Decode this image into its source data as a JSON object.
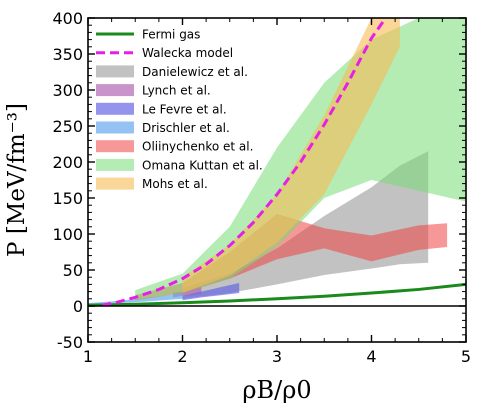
{
  "chart_data": {
    "type": "area",
    "xlabel": "ρB/ρ0",
    "ylabel": "P [MeV/fm⁻³]",
    "xlim": [
      1,
      5
    ],
    "ylim": [
      -50,
      400
    ],
    "xticks": [
      1,
      2,
      3,
      4,
      5
    ],
    "yticks": [
      -50,
      0,
      50,
      100,
      150,
      200,
      250,
      300,
      350,
      400
    ],
    "legend_position": "upper-left",
    "zero_line": true,
    "series": [
      {
        "name": "Fermi gas",
        "kind": "line",
        "color": "#1a8a1a",
        "style": "solid",
        "x": [
          1,
          1.5,
          2,
          2.5,
          3,
          3.5,
          4,
          4.5,
          5
        ],
        "y": [
          1,
          2.5,
          4.5,
          7,
          10,
          13.5,
          18,
          23,
          30
        ]
      },
      {
        "name": "Walecka model",
        "kind": "line",
        "color": "#e61ee6",
        "style": "dashed",
        "x": [
          1.15,
          1.3,
          1.5,
          1.75,
          2,
          2.25,
          2.5,
          2.75,
          3,
          3.25,
          3.5,
          3.75,
          4,
          4.15
        ],
        "y": [
          1,
          5,
          12,
          23,
          38,
          58,
          84,
          116,
          155,
          200,
          252,
          310,
          372,
          400
        ]
      },
      {
        "name": "Danielewicz et al.",
        "kind": "band",
        "color": "#999999",
        "opacity": 0.6,
        "x": [
          2,
          2.5,
          3,
          3.5,
          4,
          4.3,
          4.6
        ],
        "upper": [
          25,
          45,
          80,
          125,
          165,
          195,
          215
        ],
        "lower": [
          10,
          18,
          30,
          43,
          52,
          58,
          60
        ]
      },
      {
        "name": "Lynch et al.",
        "kind": "band",
        "color": "#b266b2",
        "opacity": 0.7,
        "x": [
          1.9,
          2.0,
          2.1,
          2.2
        ],
        "upper": [
          18,
          20,
          23,
          27
        ],
        "lower": [
          12,
          14,
          15,
          17
        ]
      },
      {
        "name": "Le Fevre et al.",
        "kind": "band",
        "color": "#6666e6",
        "opacity": 0.7,
        "x": [
          2.0,
          2.2,
          2.4,
          2.6
        ],
        "upper": [
          14,
          20,
          26,
          32
        ],
        "lower": [
          8,
          12,
          15,
          18
        ]
      },
      {
        "name": "Drischler et al.",
        "kind": "band",
        "color": "#66aaee",
        "opacity": 0.7,
        "x": [
          1.0,
          1.3,
          1.6,
          1.9,
          2.0
        ],
        "upper": [
          4,
          7,
          11,
          16,
          18
        ],
        "lower": [
          2,
          4,
          6,
          9,
          10
        ]
      },
      {
        "name": "Oliinychenko et al.",
        "kind": "band",
        "color": "#ee4444",
        "opacity": 0.55,
        "x": [
          1.5,
          2,
          2.5,
          3,
          3.5,
          4,
          4.5,
          4.8
        ],
        "upper": [
          15,
          32,
          75,
          128,
          108,
          98,
          112,
          115
        ],
        "lower": [
          8,
          18,
          38,
          65,
          80,
          62,
          78,
          82
        ]
      },
      {
        "name": "Omana Kuttan et al.",
        "kind": "band",
        "color": "#77dd77",
        "opacity": 0.55,
        "x": [
          1.5,
          2,
          2.5,
          3,
          3.5,
          4,
          4.5,
          5
        ],
        "upper": [
          22,
          45,
          110,
          220,
          310,
          370,
          400,
          400
        ],
        "lower": [
          8,
          18,
          38,
          82,
          150,
          175,
          160,
          145
        ]
      },
      {
        "name": "Mohs et al.",
        "kind": "band",
        "color": "#f9bb55",
        "opacity": 0.6,
        "x": [
          2,
          2.5,
          3,
          3.5,
          4,
          4.3
        ],
        "upper": [
          40,
          85,
          155,
          265,
          400,
          400
        ],
        "lower": [
          18,
          42,
          88,
          155,
          280,
          360
        ]
      }
    ]
  }
}
